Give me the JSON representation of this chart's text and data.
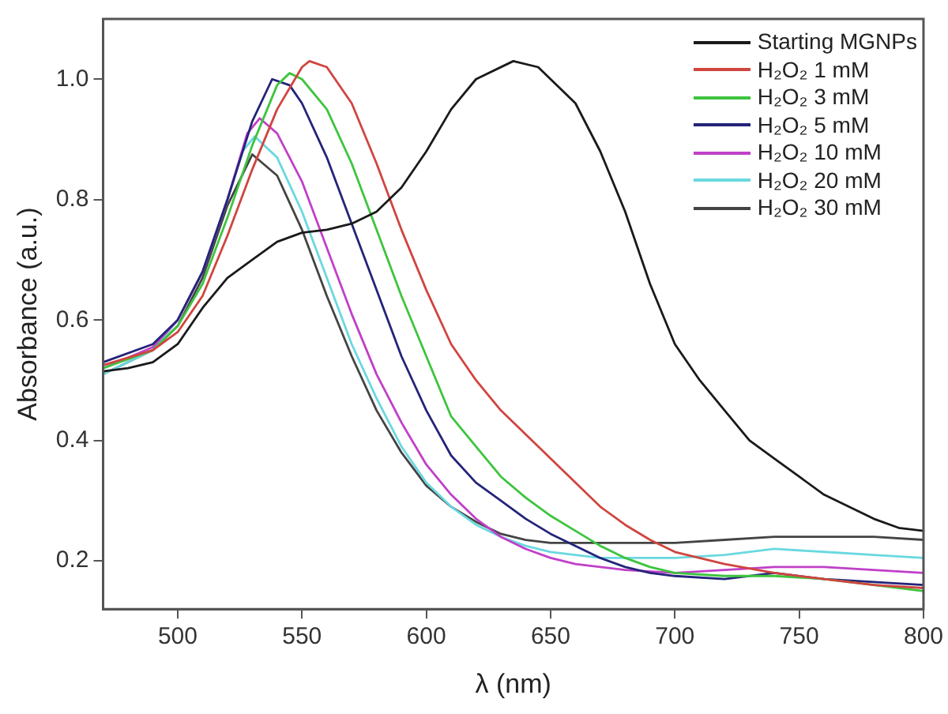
{
  "chart_data": {
    "type": "line",
    "xlabel": "λ (nm)",
    "ylabel": "Absorbance (a.u.)",
    "xlim": [
      470,
      800
    ],
    "ylim": [
      0.12,
      1.1
    ],
    "xticks": [
      500,
      550,
      600,
      650,
      700,
      750,
      800
    ],
    "yticks": [
      0.2,
      0.4,
      0.6,
      0.8,
      {
        "value": 1,
        "label": "1.0"
      }
    ],
    "grid": false,
    "legend": "top right",
    "marker": "none",
    "line_style": "solid",
    "series": [
      {
        "name": "Starting MGNPs",
        "color": "#1a1a1a",
        "x": [
          470,
          480,
          490,
          500,
          510,
          520,
          530,
          540,
          550,
          560,
          570,
          580,
          590,
          600,
          610,
          620,
          635,
          645,
          660,
          670,
          680,
          690,
          700,
          710,
          720,
          730,
          740,
          750,
          760,
          770,
          780,
          790,
          800
        ],
        "values": [
          0.515,
          0.52,
          0.53,
          0.56,
          0.62,
          0.67,
          0.7,
          0.73,
          0.745,
          0.75,
          0.76,
          0.78,
          0.82,
          0.88,
          0.95,
          1.0,
          1.03,
          1.02,
          0.96,
          0.88,
          0.78,
          0.66,
          0.56,
          0.5,
          0.45,
          0.4,
          0.37,
          0.34,
          0.31,
          0.29,
          0.27,
          0.255,
          0.25
        ]
      },
      {
        "name": "H₂O₂ 1 mM",
        "color": "#d0453f",
        "x": [
          470,
          490,
          500,
          510,
          520,
          530,
          540,
          550,
          553,
          560,
          570,
          580,
          590,
          600,
          610,
          620,
          630,
          640,
          650,
          660,
          670,
          680,
          690,
          700,
          720,
          740,
          760,
          780,
          800
        ],
        "values": [
          0.525,
          0.55,
          0.58,
          0.64,
          0.74,
          0.85,
          0.95,
          1.02,
          1.03,
          1.02,
          0.96,
          0.86,
          0.75,
          0.65,
          0.56,
          0.5,
          0.45,
          0.41,
          0.37,
          0.33,
          0.29,
          0.26,
          0.235,
          0.215,
          0.195,
          0.18,
          0.17,
          0.16,
          0.155
        ]
      },
      {
        "name": "H₂O₂ 3 mM",
        "color": "#3ec43e",
        "x": [
          470,
          490,
          500,
          510,
          520,
          530,
          540,
          545,
          550,
          560,
          570,
          580,
          590,
          600,
          610,
          620,
          630,
          640,
          650,
          660,
          670,
          680,
          690,
          700,
          720,
          740,
          760,
          780,
          800
        ],
        "values": [
          0.52,
          0.55,
          0.59,
          0.66,
          0.77,
          0.89,
          0.99,
          1.01,
          1.0,
          0.95,
          0.86,
          0.75,
          0.64,
          0.54,
          0.44,
          0.39,
          0.34,
          0.305,
          0.275,
          0.25,
          0.225,
          0.205,
          0.19,
          0.18,
          0.175,
          0.175,
          0.17,
          0.16,
          0.15
        ]
      },
      {
        "name": "H₂O₂ 5 mM",
        "color": "#24247a",
        "x": [
          470,
          490,
          500,
          510,
          520,
          530,
          538,
          545,
          550,
          560,
          570,
          580,
          590,
          600,
          610,
          620,
          630,
          640,
          650,
          660,
          670,
          680,
          690,
          700,
          720,
          740,
          760,
          780,
          800
        ],
        "values": [
          0.53,
          0.56,
          0.6,
          0.68,
          0.8,
          0.93,
          1.0,
          0.99,
          0.96,
          0.87,
          0.76,
          0.65,
          0.54,
          0.45,
          0.375,
          0.33,
          0.3,
          0.27,
          0.245,
          0.225,
          0.205,
          0.19,
          0.18,
          0.175,
          0.17,
          0.18,
          0.17,
          0.165,
          0.16
        ]
      },
      {
        "name": "H₂O₂ 10 mM",
        "color": "#c040c8",
        "x": [
          470,
          490,
          500,
          510,
          520,
          528,
          533,
          540,
          550,
          560,
          570,
          580,
          590,
          600,
          610,
          620,
          630,
          640,
          650,
          660,
          680,
          700,
          720,
          740,
          760,
          780,
          800
        ],
        "values": [
          0.52,
          0.555,
          0.6,
          0.68,
          0.8,
          0.91,
          0.935,
          0.91,
          0.83,
          0.72,
          0.61,
          0.51,
          0.43,
          0.36,
          0.31,
          0.27,
          0.24,
          0.22,
          0.205,
          0.195,
          0.185,
          0.18,
          0.185,
          0.19,
          0.19,
          0.185,
          0.18
        ]
      },
      {
        "name": "H₂O₂ 20 mM",
        "color": "#6ad8e0",
        "x": [
          470,
          490,
          500,
          510,
          520,
          526,
          531,
          540,
          550,
          560,
          570,
          580,
          590,
          600,
          610,
          620,
          630,
          640,
          650,
          670,
          700,
          720,
          740,
          760,
          780,
          800
        ],
        "values": [
          0.51,
          0.55,
          0.6,
          0.68,
          0.8,
          0.88,
          0.905,
          0.87,
          0.78,
          0.67,
          0.56,
          0.47,
          0.39,
          0.33,
          0.29,
          0.26,
          0.24,
          0.225,
          0.215,
          0.205,
          0.205,
          0.21,
          0.22,
          0.215,
          0.21,
          0.205
        ]
      },
      {
        "name": "H₂O₂ 30 mM",
        "color": "#444444",
        "x": [
          470,
          490,
          500,
          510,
          520,
          530,
          540,
          550,
          560,
          570,
          580,
          590,
          600,
          610,
          620,
          630,
          640,
          650,
          670,
          700,
          720,
          740,
          760,
          780,
          800
        ],
        "values": [
          0.51,
          0.55,
          0.59,
          0.67,
          0.79,
          0.875,
          0.84,
          0.75,
          0.64,
          0.54,
          0.45,
          0.38,
          0.325,
          0.29,
          0.265,
          0.245,
          0.235,
          0.23,
          0.23,
          0.23,
          0.235,
          0.24,
          0.24,
          0.24,
          0.235
        ]
      }
    ]
  }
}
